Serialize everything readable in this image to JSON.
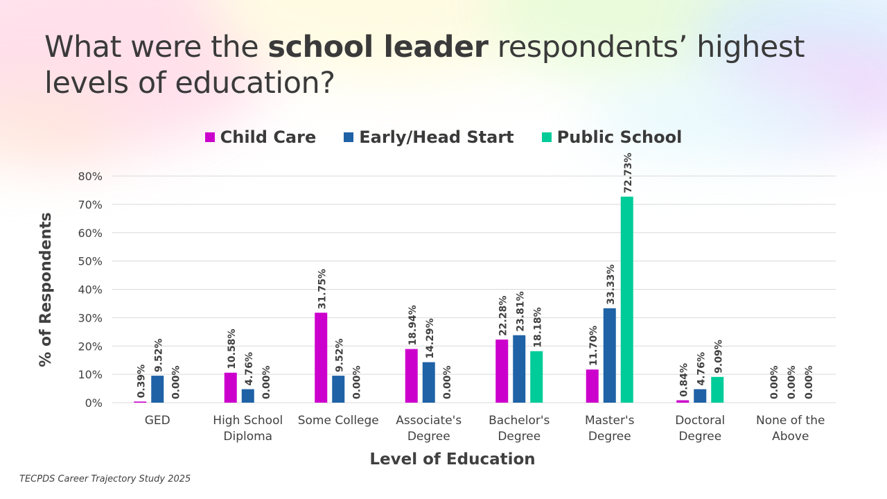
{
  "slide": {
    "title_pre": "What were the ",
    "title_bold": "school leader",
    "title_post": " respondents’ highest levels of education?",
    "source": "TECPDS Career Trajectory Study 2025"
  },
  "colors": {
    "child_care": "#cc00cc",
    "early_head_start": "#1f62a6",
    "public_school": "#00cc99",
    "grid": "#d9d9d9",
    "text": "#404040"
  },
  "chart_data": {
    "type": "bar",
    "title": "",
    "xlabel": "Level of Education",
    "ylabel": "% of Respondents",
    "ylim": [
      0,
      80
    ],
    "yticks": [
      "0%",
      "10%",
      "20%",
      "30%",
      "40%",
      "50%",
      "60%",
      "70%",
      "80%"
    ],
    "ytick_values": [
      0,
      10,
      20,
      30,
      40,
      50,
      60,
      70,
      80
    ],
    "grid": true,
    "legend_position": "top",
    "categories": [
      [
        "GED"
      ],
      [
        "High School",
        "Diploma"
      ],
      [
        "Some College"
      ],
      [
        "Associate's",
        "Degree"
      ],
      [
        "Bachelor's",
        "Degree"
      ],
      [
        "Master's",
        "Degree"
      ],
      [
        "Doctoral",
        "Degree"
      ],
      [
        "None of the",
        "Above"
      ]
    ],
    "series": [
      {
        "name": "Child Care",
        "color": "#cc00cc",
        "values": [
          0.39,
          10.58,
          31.75,
          18.94,
          22.28,
          11.7,
          0.84,
          0.0
        ],
        "labels": [
          "0.39%",
          "10.58%",
          "31.75%",
          "18.94%",
          "22.28%",
          "11.70%",
          "0.84%",
          "0.00%"
        ]
      },
      {
        "name": "Early/Head Start",
        "color": "#1f62a6",
        "values": [
          9.52,
          4.76,
          9.52,
          14.29,
          23.81,
          33.33,
          4.76,
          0.0
        ],
        "labels": [
          "9.52%",
          "4.76%",
          "9.52%",
          "14.29%",
          "23.81%",
          "33.33%",
          "4.76%",
          "0.00%"
        ]
      },
      {
        "name": "Public School",
        "color": "#00cc99",
        "values": [
          0.0,
          0.0,
          0.0,
          0.0,
          18.18,
          72.73,
          9.09,
          0.0
        ],
        "labels": [
          "0.00%",
          "0.00%",
          "0.00%",
          "0.00%",
          "18.18%",
          "72.73%",
          "9.09%",
          "0.00%"
        ]
      }
    ]
  }
}
